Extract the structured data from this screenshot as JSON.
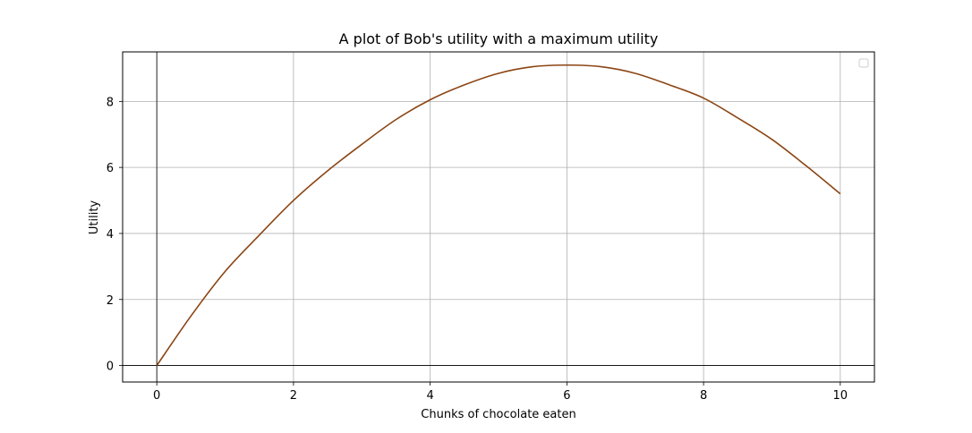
{
  "chart_data": {
    "type": "line",
    "title": "A plot of Bob's utility with a maximum utility",
    "xlabel": "Chunks of chocolate eaten",
    "ylabel": "Utility",
    "xlim": [
      -0.5,
      10.5
    ],
    "ylim": [
      -0.5,
      9.5
    ],
    "xticks": [
      0,
      2,
      4,
      6,
      8,
      10
    ],
    "xtick_labels": [
      "0",
      "2",
      "4",
      "6",
      "8",
      "10"
    ],
    "yticks": [
      0,
      2,
      4,
      6,
      8
    ],
    "ytick_labels": [
      "0",
      "2",
      "4",
      "6",
      "8"
    ],
    "grid": true,
    "zero_lines": true,
    "legend": {
      "placement": "top-right",
      "entries": []
    },
    "series": [
      {
        "color": "#8B4513",
        "x": [
          0,
          0.5,
          1,
          1.5,
          2,
          2.5,
          3,
          3.5,
          4,
          4.5,
          5,
          5.5,
          6,
          6.5,
          7,
          7.5,
          8,
          8.5,
          9,
          9.5,
          10
        ],
        "y": [
          0,
          1.5,
          2.85,
          3.95,
          5.0,
          5.9,
          6.7,
          7.45,
          8.05,
          8.5,
          8.85,
          9.05,
          9.1,
          9.05,
          8.85,
          8.5,
          8.1,
          7.5,
          6.85,
          6.05,
          5.2
        ]
      }
    ]
  }
}
